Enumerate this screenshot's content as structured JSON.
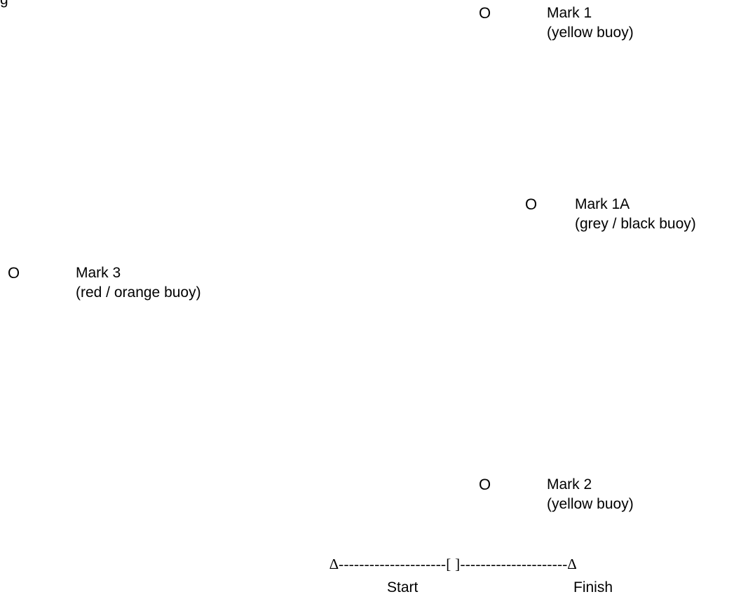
{
  "top_fragment": "g",
  "marks": [
    {
      "id": "mark-1",
      "symbol": "O",
      "name": "Mark 1",
      "description": "(yellow buoy)"
    },
    {
      "id": "mark-1a",
      "symbol": "O",
      "name": "Mark 1A",
      "description": "(grey / black buoy)"
    },
    {
      "id": "mark-3",
      "symbol": "O",
      "name": "Mark 3",
      "description": "(red / orange buoy)"
    },
    {
      "id": "mark-2",
      "symbol": "O",
      "name": "Mark 2",
      "description": "(yellow buoy)"
    }
  ],
  "start_finish": {
    "line": "∆---------------------[ ]---------------------∆",
    "start_label": "Start",
    "finish_label": "Finish"
  }
}
